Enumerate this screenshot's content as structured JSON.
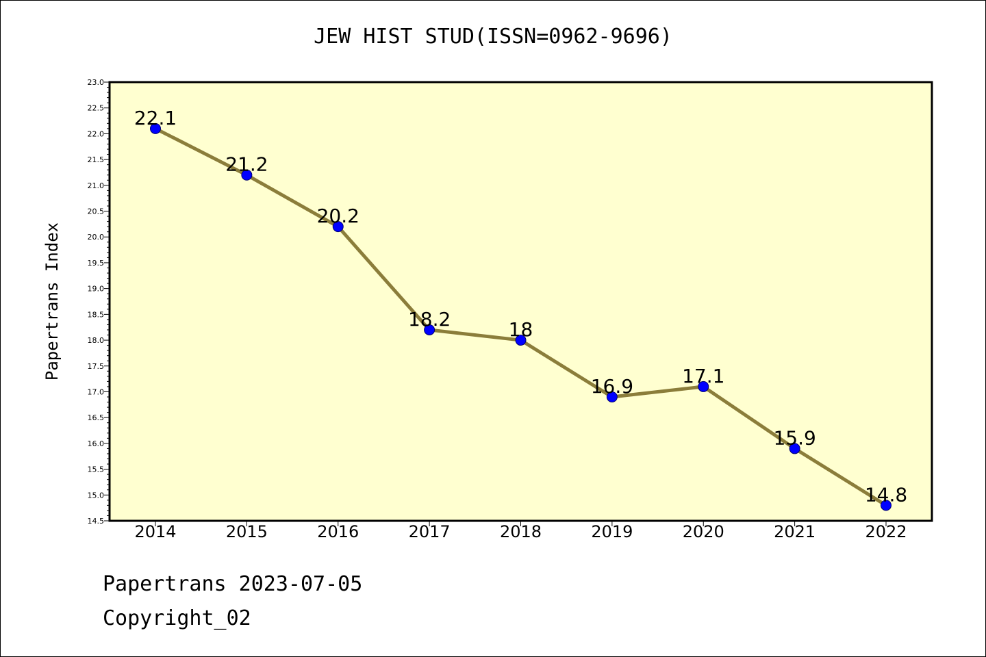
{
  "chart_data": {
    "type": "line",
    "title": "JEW HIST STUD(ISSN=0962-9696)",
    "xlabel": "",
    "ylabel": "Papertrans Index",
    "categories": [
      "2014",
      "2015",
      "2016",
      "2017",
      "2018",
      "2019",
      "2020",
      "2021",
      "2022"
    ],
    "series": [
      {
        "values": [
          22.1,
          21.2,
          20.2,
          18.2,
          18,
          16.9,
          17.1,
          15.9,
          14.8
        ]
      }
    ],
    "data_labels": [
      "22.1",
      "21.2",
      "20.2",
      "18.2",
      "18",
      "16.9",
      "17.1",
      "15.9",
      "14.8"
    ],
    "ylim": [
      14.5,
      23.0
    ],
    "yticks": [
      "14.5",
      "15.0",
      "15.5",
      "16.0",
      "16.5",
      "17.0",
      "17.5",
      "18.0",
      "18.5",
      "19.0",
      "19.5",
      "20.0",
      "20.5",
      "21.0",
      "21.5",
      "22.0",
      "22.5",
      "23.0"
    ],
    "grid": false,
    "colors": {
      "plot_background": "#ffffd0",
      "line": "#8b7d3a",
      "marker": "#0000ff"
    }
  },
  "footer": {
    "line1": "Papertrans 2023-07-05",
    "line2": "Copyright_02"
  }
}
